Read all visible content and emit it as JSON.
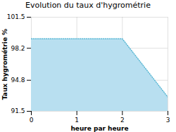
{
  "chart_data": {
    "type": "area",
    "title": "Evolution du taux d'hygrométrie",
    "xlabel": "heure par heure",
    "ylabel": "Taux hygrométrie %",
    "x": [
      0,
      2.0,
      3.0
    ],
    "series": [
      {
        "type": "area",
        "color": "#b8dff0",
        "values": [
          99.2,
          99.2,
          93.0
        ]
      },
      {
        "type": "line",
        "color": "#5bb8d4",
        "line_style": "dotted",
        "values": [
          99.2,
          99.2,
          93.0
        ]
      }
    ],
    "xlim": [
      0,
      3.0
    ],
    "ylim": [
      91.5,
      101.5
    ],
    "xticks": [
      0,
      1,
      2,
      3
    ],
    "yticks": [
      91.5,
      94.8,
      98.2,
      101.5
    ],
    "grid": true
  }
}
